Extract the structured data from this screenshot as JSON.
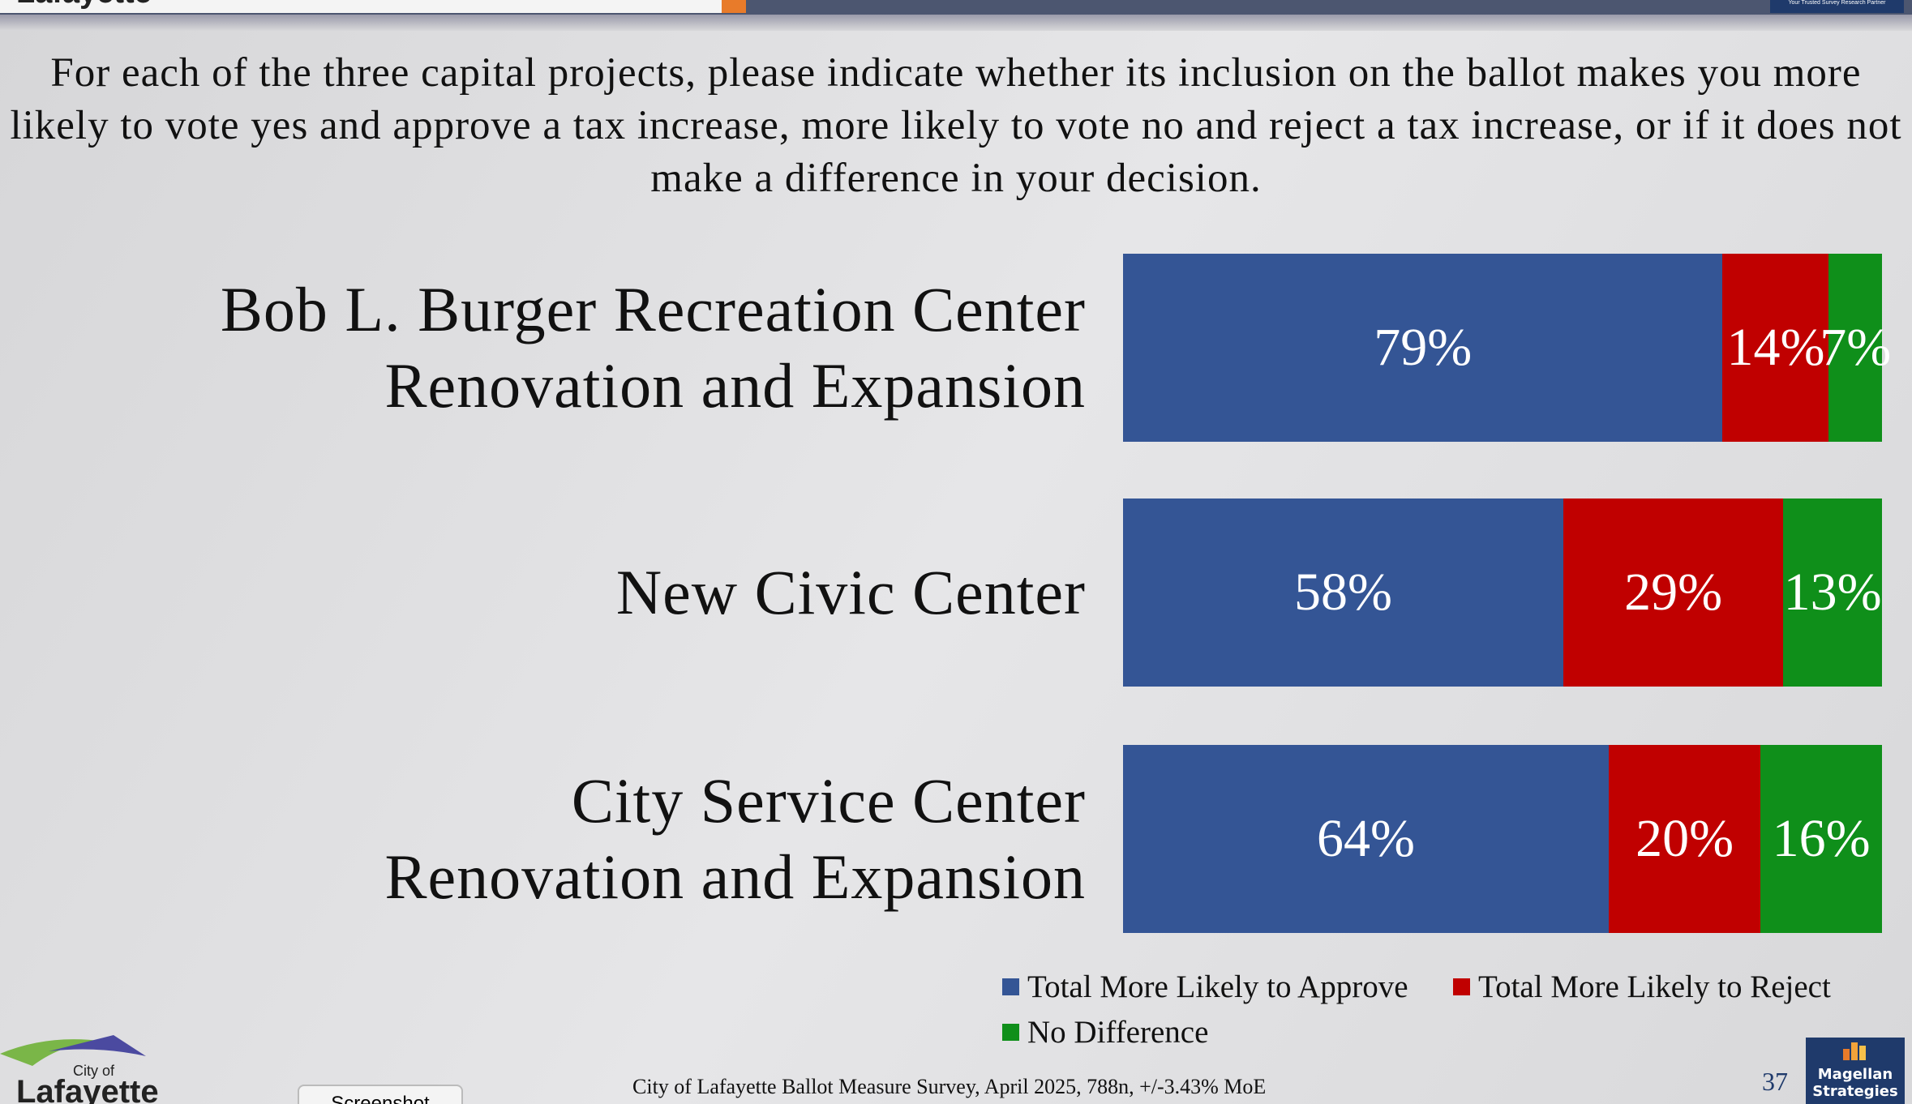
{
  "header": {
    "title": "Lafayette"
  },
  "chart_data": {
    "type": "bar",
    "orientation": "horizontal",
    "stacked": true,
    "title": "For each of the three capital projects, please indicate whether its inclusion on the ballot makes you more likely to vote yes and approve a tax increase, more likely to vote no and reject a tax increase, or if it does not make a difference in your decision.",
    "categories": [
      "Bob L. Burger Recreation Center\nRenovation and Expansion",
      "New Civic Center",
      "City Service Center\nRenovation and Expansion"
    ],
    "xlim": [
      0,
      100
    ],
    "series": [
      {
        "name": "Total More Likely to Approve",
        "color": "#345595",
        "values": [
          79,
          58,
          64
        ],
        "value_labels": [
          "79%",
          "58%",
          "64%"
        ]
      },
      {
        "name": "Total More Likely to Reject",
        "color": "#c00000",
        "values": [
          14,
          29,
          20
        ],
        "value_labels": [
          "14%",
          "29%",
          "20%"
        ]
      },
      {
        "name": "No Difference",
        "color": "#0f8f1a",
        "values": [
          7,
          13,
          16
        ],
        "value_labels": [
          "7%",
          "13%",
          "16%"
        ]
      }
    ],
    "legend": "bottom-right"
  },
  "footer": {
    "source": "City of Lafayette Ballot Measure Survey, April 2025, 788n, +/-3.43% MoE",
    "page": "37",
    "logo_left": [
      "City of",
      "Lafayette"
    ],
    "logo_right": [
      "Magellan",
      "Strategies"
    ],
    "tagline": "Your Trusted Survey Research Partner",
    "button": "Screenshot"
  }
}
